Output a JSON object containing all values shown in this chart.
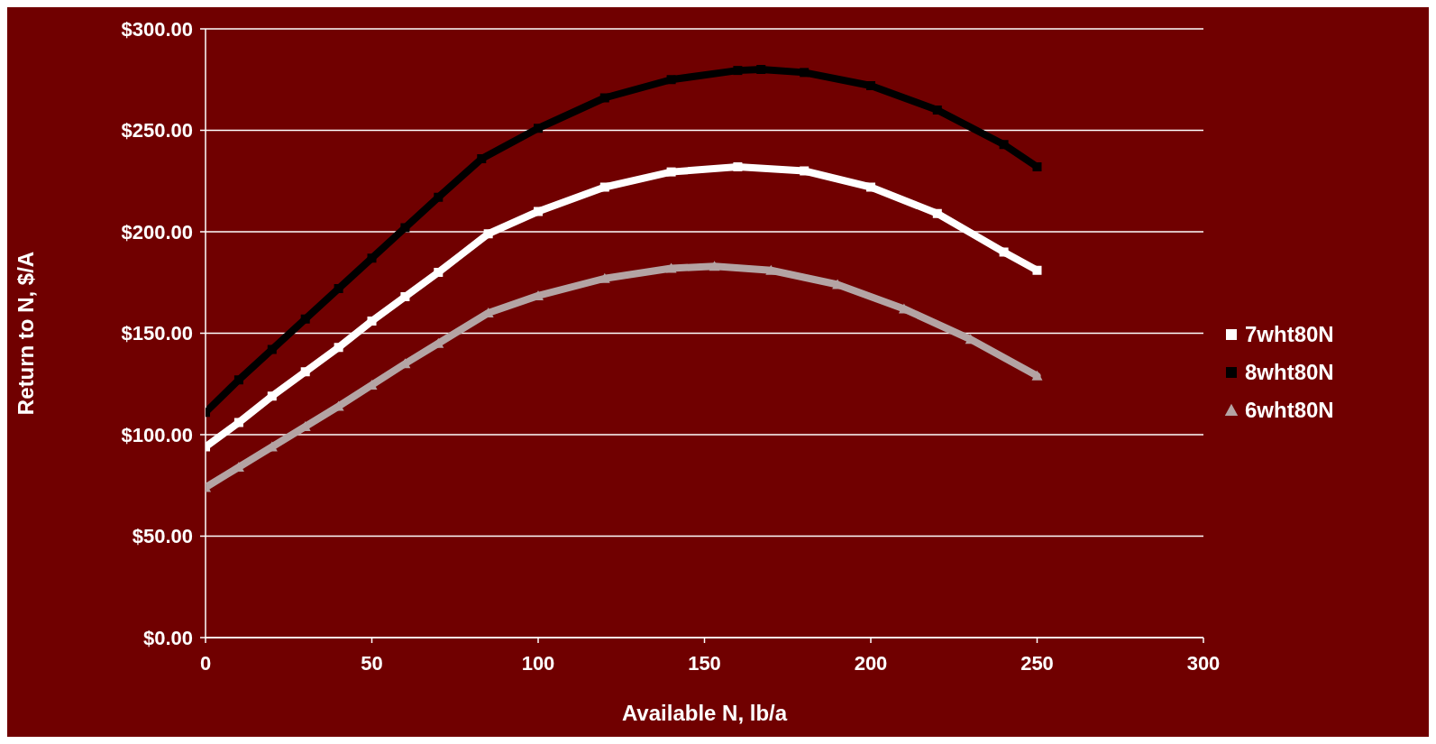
{
  "chart_data": {
    "type": "line",
    "xlabel": "Available N, lb/a",
    "ylabel": "Return to N,  $/A",
    "xlim": [
      0,
      300
    ],
    "xticks": [
      0,
      50,
      100,
      150,
      200,
      250,
      300
    ],
    "ylim": [
      0,
      300
    ],
    "yticks": [
      {
        "value": 0,
        "label": "$0.00"
      },
      {
        "value": 50,
        "label": "$50.00"
      },
      {
        "value": 100,
        "label": "$100.00"
      },
      {
        "value": 150,
        "label": "$150.00"
      },
      {
        "value": 200,
        "label": "$200.00"
      },
      {
        "value": 250,
        "label": "$250.00"
      },
      {
        "value": 300,
        "label": "$300.00"
      }
    ],
    "grid": "y",
    "legend": "right",
    "line_style": "solid",
    "series": [
      {
        "name": "7wht80N",
        "color": "#ffffff",
        "marker": "square",
        "x": [
          0,
          10,
          20,
          30,
          40,
          50,
          60,
          70,
          85,
          100,
          120,
          140,
          160,
          180,
          200,
          220,
          240,
          250
        ],
        "values": [
          94,
          106,
          119,
          131,
          143,
          156,
          168,
          180,
          199,
          210,
          222,
          229.5,
          232,
          230,
          222,
          209,
          190,
          181
        ]
      },
      {
        "name": "8wht80N",
        "color": "#000000",
        "marker": "square",
        "x": [
          0,
          10,
          20,
          30,
          40,
          50,
          60,
          70,
          83,
          100,
          120,
          140,
          160,
          167,
          180,
          200,
          220,
          240,
          250
        ],
        "values": [
          111,
          127,
          142,
          157,
          172,
          187,
          202,
          217,
          236,
          251,
          266,
          275,
          279.5,
          280,
          278.5,
          272,
          260,
          243,
          232
        ]
      },
      {
        "name": "6wht80N",
        "color": "#b4a4a4",
        "marker": "triangle",
        "x": [
          0,
          10,
          20,
          30,
          40,
          50,
          60,
          70,
          85,
          100,
          120,
          140,
          153,
          170,
          190,
          210,
          230,
          250
        ],
        "values": [
          74,
          84,
          94,
          104,
          114,
          124.5,
          135,
          145,
          160,
          168.5,
          177,
          182,
          183,
          181,
          174,
          162,
          147,
          129
        ]
      }
    ]
  }
}
